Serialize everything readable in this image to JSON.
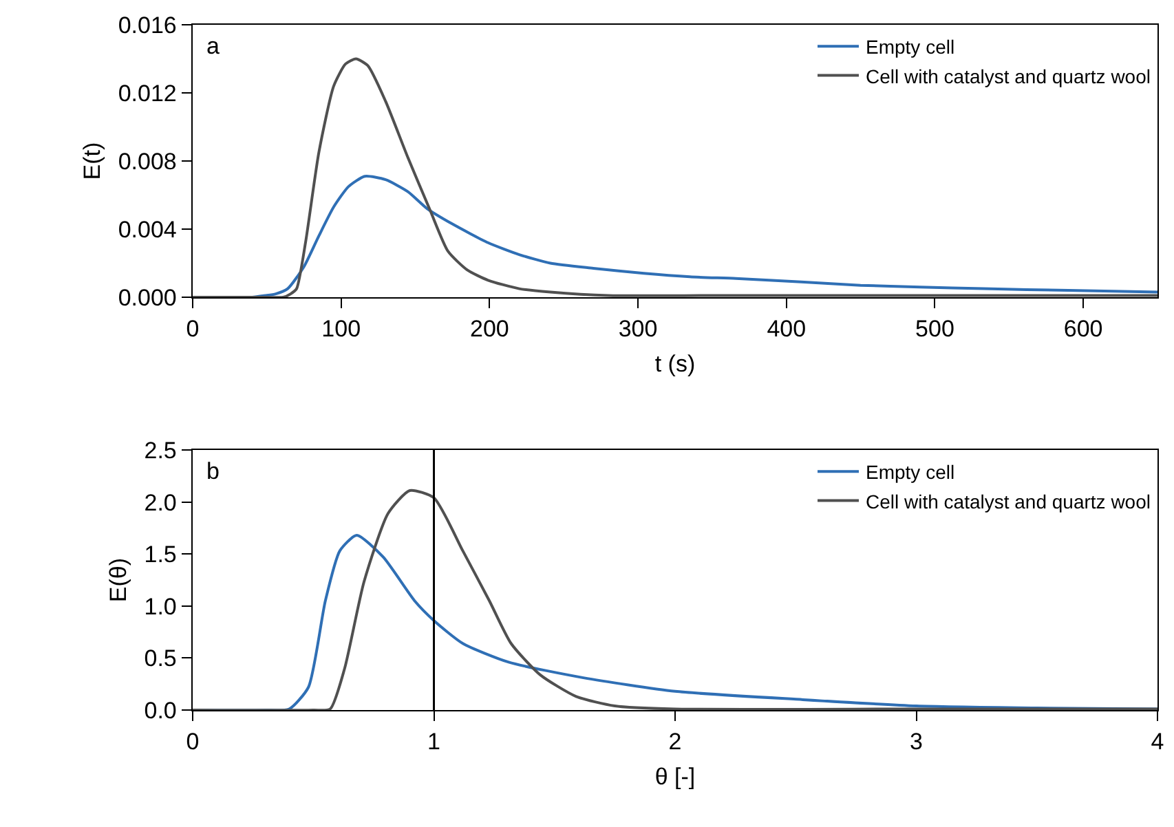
{
  "chart_data": [
    {
      "type": "line",
      "xlabel": "t (s)",
      "ylabel": "E(t)",
      "annotations": [
        "a"
      ],
      "legend": "top right",
      "grid": false,
      "xlim": [
        0,
        650
      ],
      "xticks": [
        0,
        100,
        200,
        300,
        400,
        500,
        600
      ],
      "ylim": [
        0,
        0.016
      ],
      "yticks": [
        {
          "value": 0,
          "label": "0.000"
        },
        {
          "value": 0.004,
          "label": "0.004"
        },
        {
          "value": 0.008,
          "label": "0.008"
        },
        {
          "value": 0.012,
          "label": "0.012"
        },
        {
          "value": 0.016,
          "label": "0.016"
        }
      ],
      "series": [
        {
          "name": "Empty cell",
          "color": "#2f6fb5",
          "x": [
            0,
            40,
            49,
            56,
            64,
            75,
            85,
            95,
            105,
            116,
            130,
            145,
            158,
            175,
            199,
            220,
            241,
            270,
            304,
            335,
            366,
            410,
            450,
            490,
            533,
            590,
            650
          ],
          "values": [
            0,
            0,
            0.0001,
            0.0002,
            0.0005,
            0.0018,
            0.0036,
            0.0053,
            0.0065,
            0.0071,
            0.0069,
            0.0062,
            0.0052,
            0.0043,
            0.0032,
            0.0025,
            0.002,
            0.0017,
            0.0014,
            0.0012,
            0.0011,
            0.0009,
            0.0007,
            0.0006,
            0.0005,
            0.0004,
            0.0003
          ]
        },
        {
          "name": "Cell with catalyst and quartz wool",
          "color": "#505050",
          "x": [
            0,
            50,
            61,
            66,
            70,
            76,
            85,
            95,
            103,
            110,
            118,
            130,
            145,
            160,
            172,
            185,
            199,
            220,
            241,
            280,
            350,
            450,
            550,
            650
          ],
          "values": [
            0,
            0,
            0,
            0.0002,
            0.0005,
            0.0032,
            0.0085,
            0.0124,
            0.0137,
            0.014,
            0.0136,
            0.0115,
            0.0082,
            0.0051,
            0.0027,
            0.0016,
            0.001,
            0.0005,
            0.0003,
            0.0001,
            0.0001,
            0.0001,
            0.0001,
            0.0001
          ]
        }
      ]
    },
    {
      "type": "line",
      "xlabel": "θ [-]",
      "ylabel": "E(θ)",
      "annotations": [
        "b"
      ],
      "legend": "top right",
      "grid": false,
      "xlim": [
        0,
        4
      ],
      "xticks": [
        0,
        1,
        2,
        3,
        4
      ],
      "ylim": [
        0,
        2.5
      ],
      "yticks": [
        {
          "value": 0,
          "label": "0.0"
        },
        0.5,
        {
          "value": 1,
          "label": "1.0"
        },
        1.5,
        {
          "value": 2,
          "label": "2.0"
        },
        2.5
      ],
      "ref_lines": [
        {
          "axis": "x",
          "value": 1,
          "color": "#000000"
        }
      ],
      "series": [
        {
          "name": "Empty cell",
          "color": "#2f6fb5",
          "x": [
            0,
            0.3,
            0.4,
            0.48,
            0.55,
            0.61,
            0.68,
            0.79,
            0.92,
            1.0,
            1.12,
            1.31,
            1.62,
            2.0,
            2.53,
            3.0,
            3.5,
            4.0
          ],
          "values": [
            0,
            0,
            0.01,
            0.22,
            1.05,
            1.53,
            1.68,
            1.47,
            1.05,
            0.86,
            0.64,
            0.46,
            0.31,
            0.18,
            0.1,
            0.04,
            0.02,
            0.01
          ]
        },
        {
          "name": "Cell with catalyst and quartz wool",
          "color": "#505050",
          "x": [
            0,
            0.5,
            0.57,
            0.63,
            0.71,
            0.81,
            0.9,
            1.0,
            1.12,
            1.23,
            1.32,
            1.44,
            1.59,
            1.75,
            2.0,
            3.0,
            4.0
          ],
          "values": [
            0,
            0,
            0.01,
            0.4,
            1.23,
            1.89,
            2.11,
            2.04,
            1.53,
            1.05,
            0.64,
            0.34,
            0.13,
            0.04,
            0.01,
            0.01,
            0.01
          ]
        }
      ]
    }
  ]
}
